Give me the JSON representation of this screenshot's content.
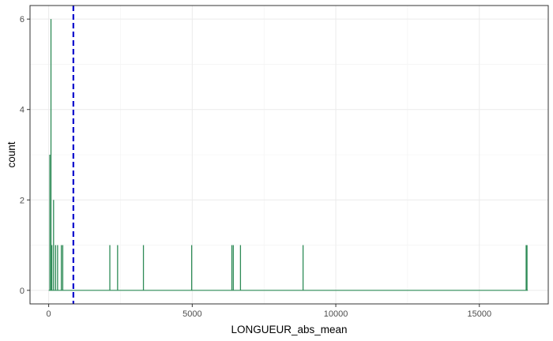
{
  "chart_data": {
    "type": "bar",
    "subtype": "histogram",
    "title": "",
    "xlabel": "LONGUEUR_abs_mean",
    "ylabel": "count",
    "xlim": [
      -650,
      17400
    ],
    "ylim": [
      -0.3,
      6.3
    ],
    "x_ticks": [
      0,
      5000,
      10000,
      15000
    ],
    "x_tick_labels": [
      "0",
      "5000",
      "10000",
      "15000"
    ],
    "x_minor_ticks": [
      2500,
      7500,
      12500,
      17500
    ],
    "y_ticks": [
      0,
      2,
      4,
      6
    ],
    "y_tick_labels": [
      "0",
      "2",
      "4",
      "6"
    ],
    "y_minor_ticks": [
      1,
      3,
      5
    ],
    "grid": true,
    "bar_color": "#2e8b57",
    "bars": [
      {
        "x": 40,
        "count": 3
      },
      {
        "x": 80,
        "count": 6
      },
      {
        "x": 110,
        "count": 1
      },
      {
        "x": 170,
        "count": 2
      },
      {
        "x": 240,
        "count": 1
      },
      {
        "x": 310,
        "count": 1
      },
      {
        "x": 440,
        "count": 1
      },
      {
        "x": 490,
        "count": 1
      },
      {
        "x": 2130,
        "count": 1
      },
      {
        "x": 2400,
        "count": 1
      },
      {
        "x": 3300,
        "count": 1
      },
      {
        "x": 4980,
        "count": 1
      },
      {
        "x": 6380,
        "count": 1
      },
      {
        "x": 6430,
        "count": 1
      },
      {
        "x": 6680,
        "count": 1
      },
      {
        "x": 8860,
        "count": 1
      },
      {
        "x": 16630,
        "count": 1
      },
      {
        "x": 16660,
        "count": 1
      }
    ],
    "mean_line": {
      "x": 860,
      "color": "#0000cd",
      "style": "dashed"
    }
  }
}
